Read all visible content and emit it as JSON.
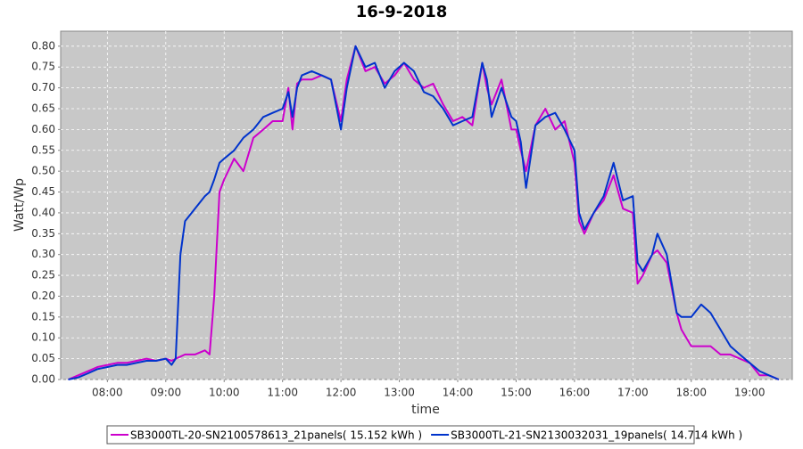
{
  "chart_data": {
    "type": "line",
    "title": "16-9-2018",
    "x_label": "time",
    "y_label": "Watt/Wp",
    "x": [
      7.33,
      7.5,
      7.67,
      7.83,
      8.0,
      8.17,
      8.33,
      8.5,
      8.67,
      8.83,
      9.0,
      9.1,
      9.17,
      9.25,
      9.33,
      9.5,
      9.67,
      9.75,
      9.83,
      9.92,
      10.0,
      10.17,
      10.33,
      10.5,
      10.67,
      10.83,
      11.0,
      11.1,
      11.17,
      11.25,
      11.33,
      11.5,
      11.67,
      11.83,
      12.0,
      12.1,
      12.25,
      12.42,
      12.58,
      12.75,
      12.92,
      13.08,
      13.25,
      13.42,
      13.58,
      13.75,
      13.92,
      14.08,
      14.25,
      14.42,
      14.5,
      14.58,
      14.75,
      14.92,
      15.0,
      15.08,
      15.17,
      15.33,
      15.5,
      15.67,
      15.83,
      16.0,
      16.08,
      16.17,
      16.33,
      16.5,
      16.67,
      16.83,
      17.0,
      17.08,
      17.17,
      17.33,
      17.42,
      17.58,
      17.75,
      17.83,
      18.0,
      18.17,
      18.33,
      18.5,
      18.67,
      18.83,
      19.0,
      19.17,
      19.33,
      19.5
    ],
    "series": [
      {
        "name": "SB3000TL-20-SN2100578613_21panels( 15.152 kWh )",
        "color": "#cc00cc",
        "values": [
          0,
          0.01,
          0.02,
          0.03,
          0.035,
          0.04,
          0.04,
          0.045,
          0.05,
          0.045,
          0.05,
          0.045,
          0.05,
          0.055,
          0.06,
          0.06,
          0.07,
          0.06,
          0.2,
          0.45,
          0.48,
          0.53,
          0.5,
          0.58,
          0.6,
          0.62,
          0.62,
          0.7,
          0.6,
          0.71,
          0.72,
          0.72,
          0.73,
          0.72,
          0.62,
          0.72,
          0.8,
          0.74,
          0.75,
          0.71,
          0.73,
          0.76,
          0.72,
          0.7,
          0.71,
          0.66,
          0.62,
          0.63,
          0.61,
          0.76,
          0.7,
          0.66,
          0.72,
          0.6,
          0.6,
          0.55,
          0.5,
          0.61,
          0.65,
          0.6,
          0.62,
          0.52,
          0.38,
          0.35,
          0.4,
          0.43,
          0.49,
          0.41,
          0.4,
          0.23,
          0.25,
          0.3,
          0.31,
          0.28,
          0.16,
          0.12,
          0.08,
          0.08,
          0.08,
          0.06,
          0.06,
          0.05,
          0.04,
          0.01,
          0.01,
          0
        ]
      },
      {
        "name": "SB3000TL-21-SN2130032031_19panels( 14.714 kWh )",
        "color": "#0033cc",
        "values": [
          0,
          0.005,
          0.015,
          0.025,
          0.03,
          0.035,
          0.035,
          0.04,
          0.045,
          0.045,
          0.05,
          0.035,
          0.05,
          0.3,
          0.38,
          0.41,
          0.44,
          0.45,
          0.48,
          0.52,
          0.53,
          0.55,
          0.58,
          0.6,
          0.63,
          0.64,
          0.65,
          0.69,
          0.63,
          0.7,
          0.73,
          0.74,
          0.73,
          0.72,
          0.6,
          0.7,
          0.8,
          0.75,
          0.76,
          0.7,
          0.74,
          0.76,
          0.74,
          0.69,
          0.68,
          0.65,
          0.61,
          0.62,
          0.63,
          0.76,
          0.72,
          0.63,
          0.7,
          0.63,
          0.62,
          0.57,
          0.46,
          0.61,
          0.63,
          0.64,
          0.6,
          0.55,
          0.4,
          0.36,
          0.4,
          0.44,
          0.52,
          0.43,
          0.44,
          0.28,
          0.26,
          0.3,
          0.35,
          0.3,
          0.16,
          0.15,
          0.15,
          0.18,
          0.16,
          0.12,
          0.08,
          0.06,
          0.04,
          0.02,
          0.01,
          0
        ]
      }
    ],
    "xlim": [
      7.2,
      19.73
    ],
    "xticks": [
      {
        "value": 8,
        "label": "08:00"
      },
      {
        "value": 9,
        "label": "09:00"
      },
      {
        "value": 10,
        "label": "10:00"
      },
      {
        "value": 11,
        "label": "11:00"
      },
      {
        "value": 12,
        "label": "12:00"
      },
      {
        "value": 13,
        "label": "13:00"
      },
      {
        "value": 14,
        "label": "14:00"
      },
      {
        "value": 15,
        "label": "15:00"
      },
      {
        "value": 16,
        "label": "16:00"
      },
      {
        "value": 17,
        "label": "17:00"
      },
      {
        "value": 18,
        "label": "18:00"
      },
      {
        "value": 19,
        "label": "19:00"
      }
    ],
    "ylim": [
      0,
      0.836
    ],
    "yticks": [
      {
        "value": 0,
        "label": "0.00"
      },
      0.05,
      {
        "value": 0.1,
        "label": "0.10"
      },
      0.15,
      {
        "value": 0.2,
        "label": "0.20"
      },
      0.25,
      {
        "value": 0.3,
        "label": "0.30"
      },
      0.35,
      {
        "value": 0.4,
        "label": "0.40"
      },
      0.45,
      {
        "value": 0.5,
        "label": "0.50"
      },
      0.55,
      {
        "value": 0.6,
        "label": "0.60"
      },
      0.65,
      {
        "value": 0.7,
        "label": "0.70"
      },
      0.75,
      {
        "value": 0.8,
        "label": "0.80"
      }
    ],
    "grid": true,
    "legend": "bottom"
  }
}
